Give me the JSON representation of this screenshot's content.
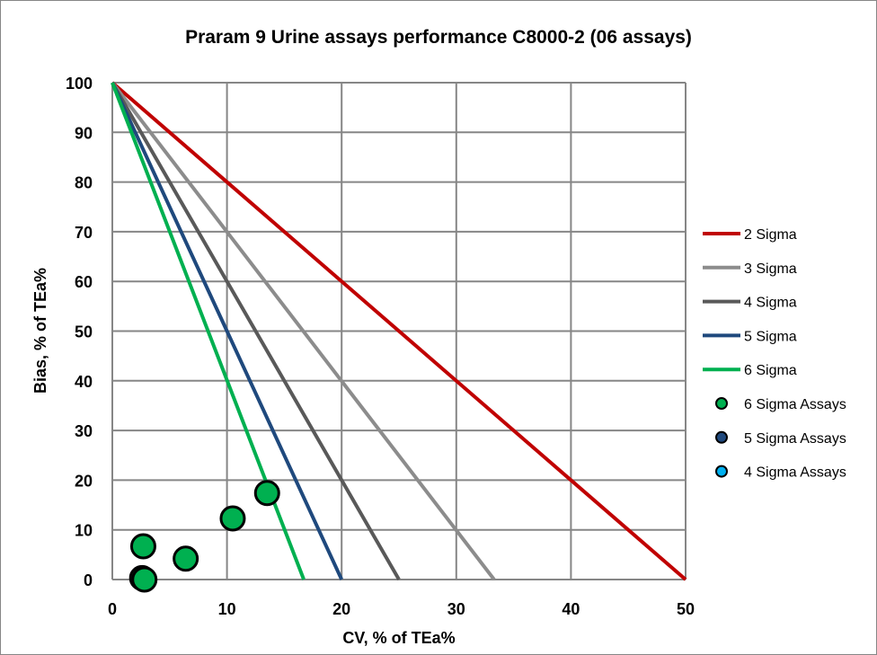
{
  "chart_data": {
    "type": "scatter",
    "title": "Praram  9 Urine assays performance C8000-2 (06 assays)",
    "xlabel": "CV, % of TEa%",
    "ylabel": "Bias, % of TEa%",
    "xlim": [
      0,
      50
    ],
    "ylim": [
      0,
      100
    ],
    "xticks": [
      "0",
      "10",
      "20",
      "30",
      "40",
      "50"
    ],
    "yticks": [
      "0",
      "10",
      "20",
      "30",
      "40",
      "50",
      "60",
      "70",
      "80",
      "90",
      "100"
    ],
    "grid": true,
    "legend_position": "right",
    "lines": [
      {
        "name": "2 Sigma",
        "color": "#C00000",
        "x_intercept": 50
      },
      {
        "name": "3 Sigma",
        "color": "#8C8C8C",
        "x_intercept": 33.3
      },
      {
        "name": "4 Sigma",
        "color": "#595959",
        "x_intercept": 25
      },
      {
        "name": "5 Sigma",
        "color": "#1F497D",
        "x_intercept": 20
      },
      {
        "name": "6 Sigma",
        "color": "#00B050",
        "x_intercept": 16.7
      }
    ],
    "series": [
      {
        "name": "6 Sigma Assays",
        "color": "#00B050",
        "points": [
          [
            2.7,
            6.7
          ],
          [
            2.6,
            0.3
          ],
          [
            2.8,
            0.0
          ],
          [
            6.4,
            4.2
          ],
          [
            10.5,
            12.3
          ],
          [
            13.5,
            17.4
          ]
        ]
      },
      {
        "name": "5 Sigma Assays",
        "color": "#1F497D",
        "points": []
      },
      {
        "name": "4 Sigma Assays",
        "color": "#00B0F0",
        "points": []
      }
    ]
  }
}
